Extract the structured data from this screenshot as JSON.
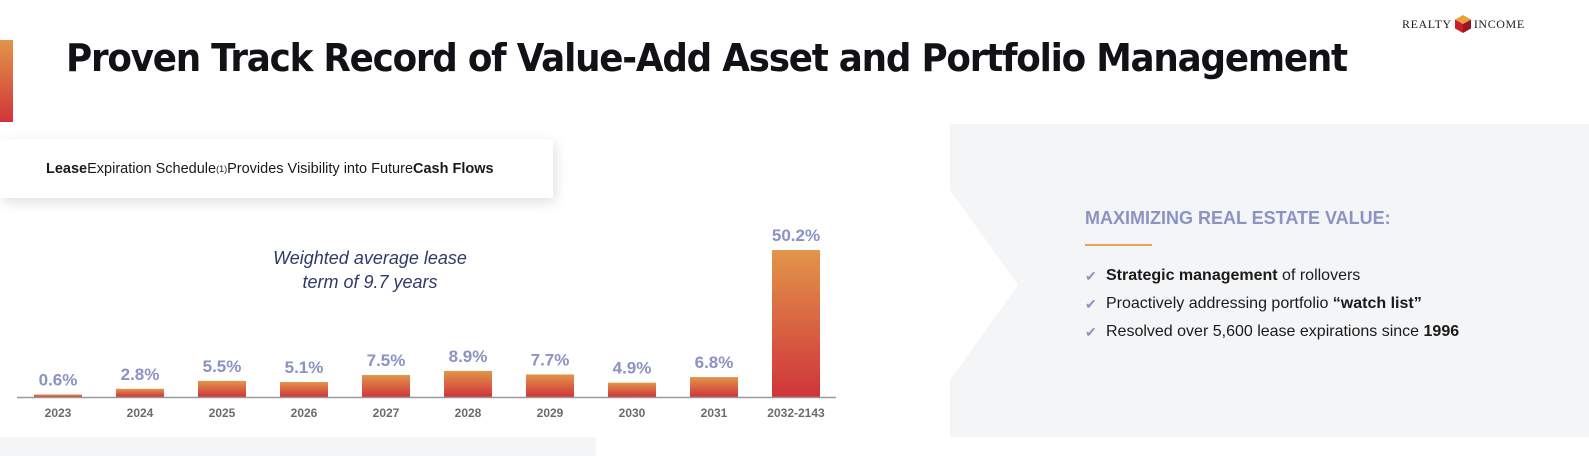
{
  "header": {
    "title": "Proven Track Record of Value-Add Asset and Portfolio Management",
    "logo_left": "REALTY",
    "logo_right": "INCOME"
  },
  "chip": {
    "part1": "Lease",
    "part2": " Expiration Schedule",
    "footnote": "(1)",
    "part3": " Provides Visibility into Future ",
    "part4": "Cash Flows"
  },
  "note": {
    "line1": "Weighted average lease",
    "line2": "term of 9.7 years"
  },
  "chart_data": {
    "type": "bar",
    "title": "Lease Expiration Schedule",
    "categories": [
      "2023",
      "2024",
      "2025",
      "2026",
      "2027",
      "2028",
      "2029",
      "2030",
      "2031",
      "2032-2143"
    ],
    "values": [
      0.6,
      2.8,
      5.5,
      5.1,
      7.5,
      8.9,
      7.7,
      4.9,
      6.8,
      50.2
    ],
    "value_labels": [
      "0.6%",
      "2.8%",
      "5.5%",
      "5.1%",
      "7.5%",
      "8.9%",
      "7.7%",
      "4.9%",
      "6.8%",
      "50.2%"
    ],
    "unit": "%",
    "xlabel": "",
    "ylabel": "",
    "ylim": [
      0,
      52
    ],
    "grid": false,
    "legend": "none"
  },
  "panel": {
    "heading": "MAXIMIZING REAL ESTATE VALUE:",
    "bullets": [
      {
        "bold": "Strategic management",
        "rest": " of rollovers"
      },
      {
        "pre": "Proactively addressing portfolio ",
        "bold": "“watch list”"
      },
      {
        "pre": "Resolved over 5,600 lease expirations since ",
        "bold": "1996"
      }
    ]
  },
  "colors": {
    "bar_top": "#e2954a",
    "bar_bottom": "#d0343a",
    "label": "#8b92c4",
    "tick": "#6b6b6b",
    "axis": "#9a9a9a",
    "panel_bg": "#f4f5f7"
  },
  "icons": {
    "check": "check-icon",
    "logo": "realty-income-logo"
  }
}
